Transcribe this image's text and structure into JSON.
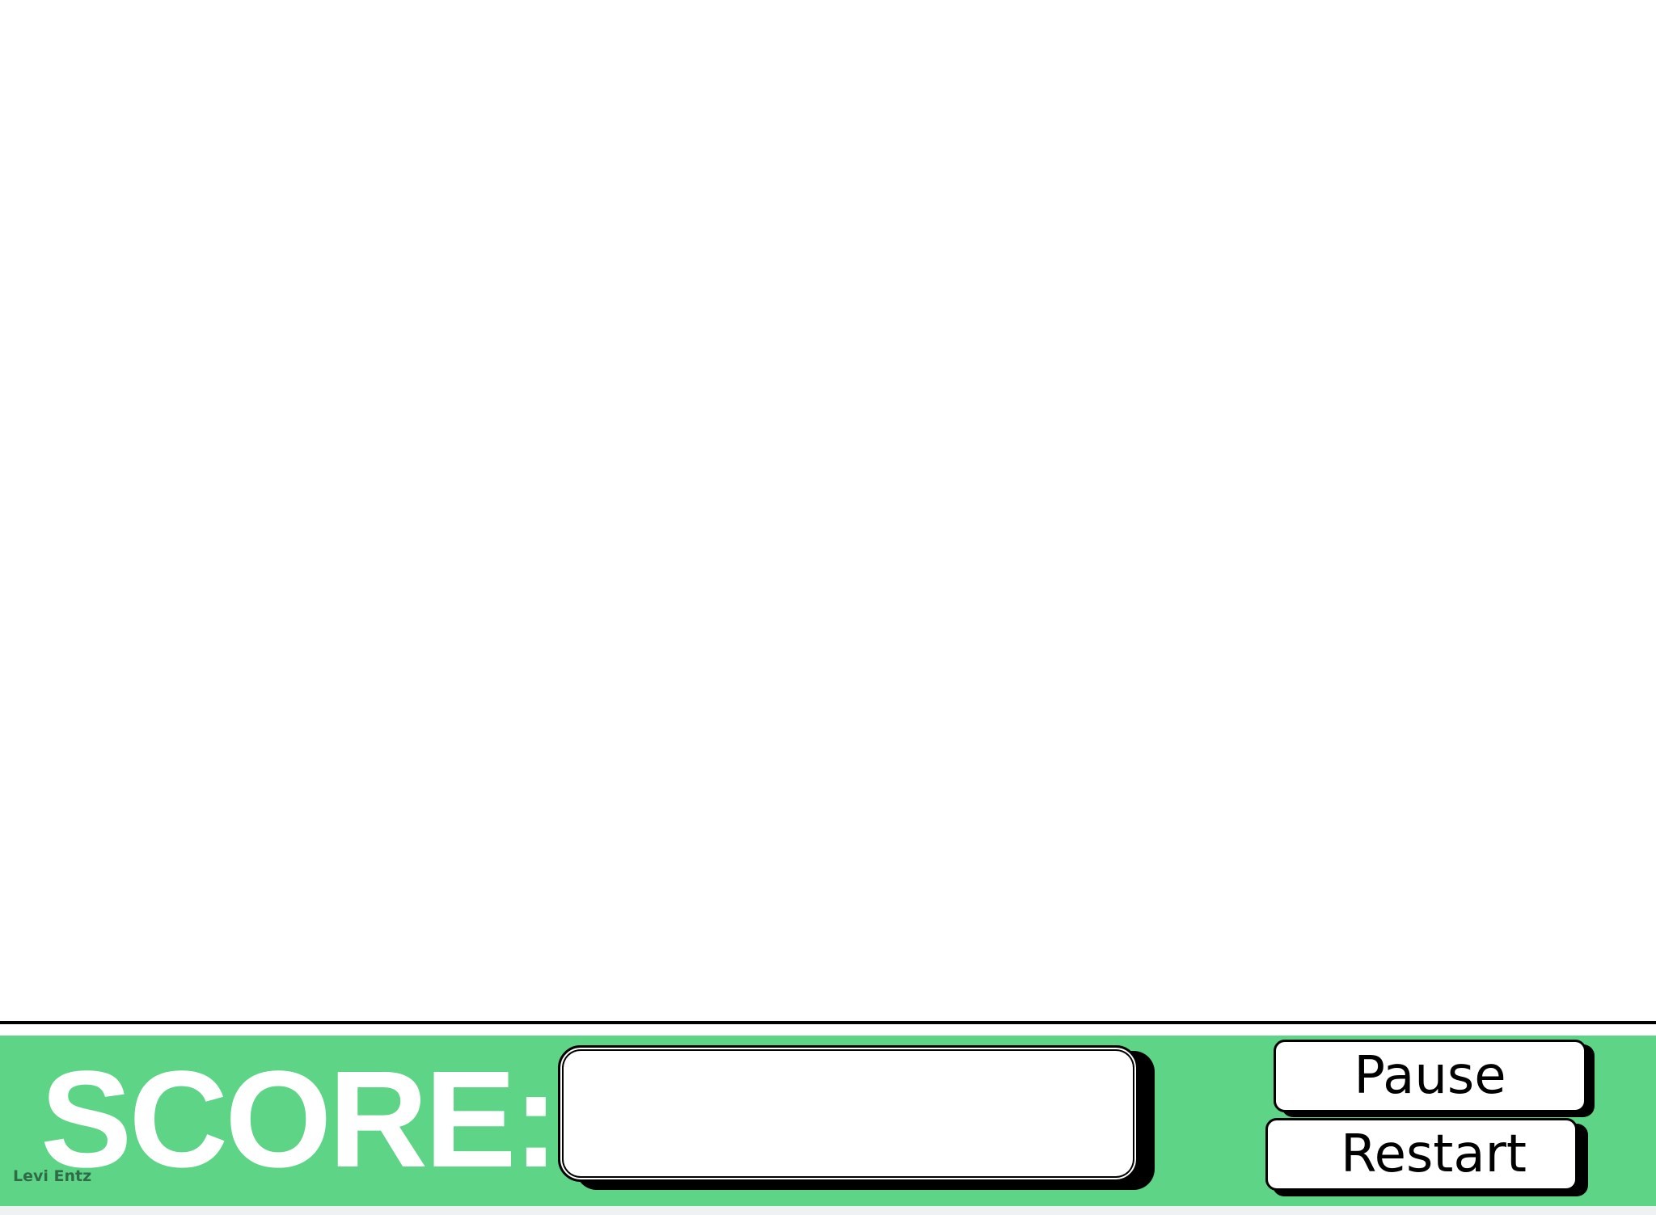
{
  "hud": {
    "score_label": "SCORE:",
    "score_value": "",
    "pause_label": "Pause",
    "restart_label": "Restart",
    "credit": "Levi Entz"
  },
  "colors": {
    "hud_background": "#5ed586",
    "score_text": "#ffffff",
    "game_background": "#ffffff",
    "divider": "#000000"
  }
}
